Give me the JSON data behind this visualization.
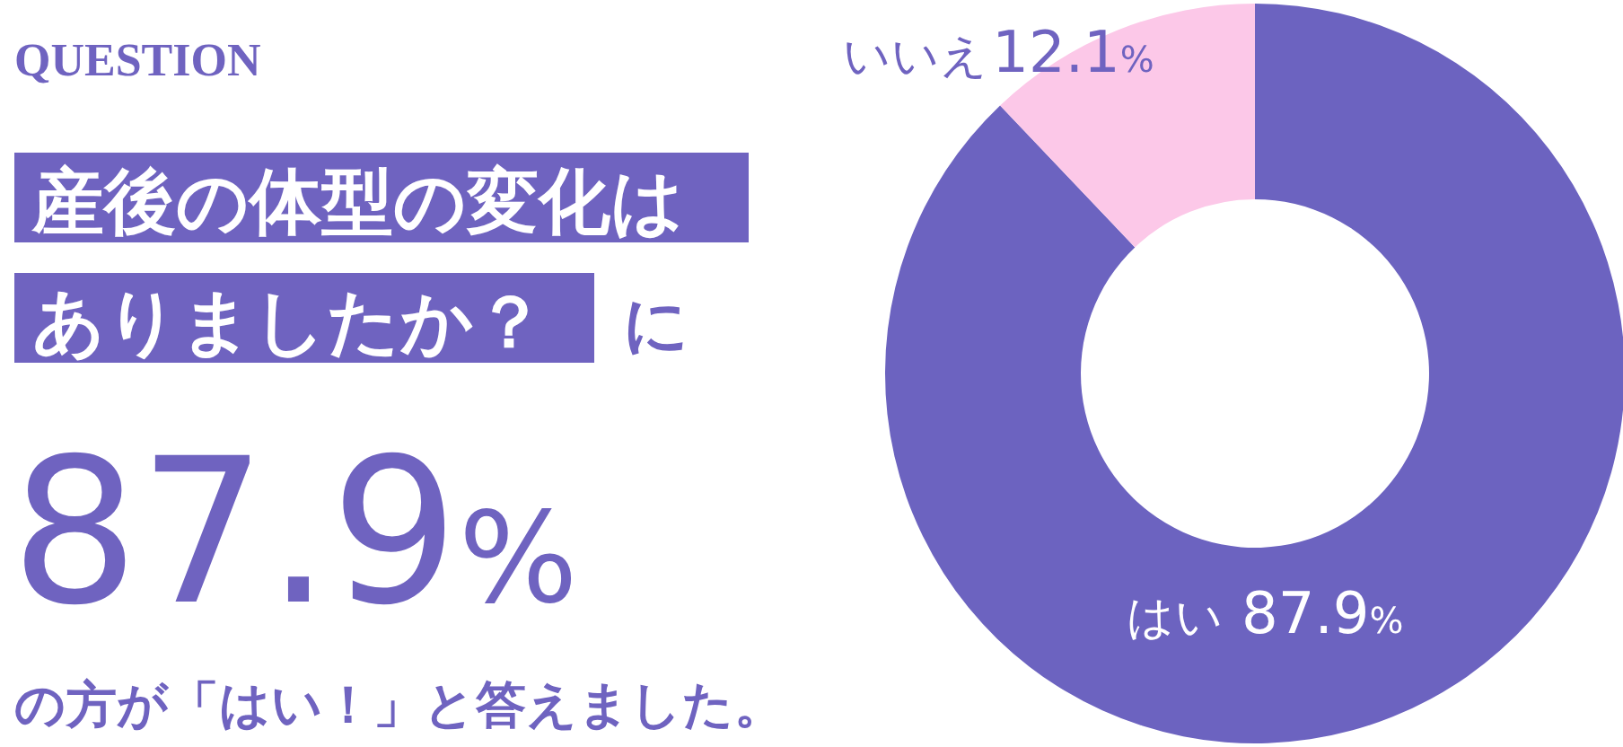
{
  "chart_data": {
    "type": "donut",
    "categories": [
      "はい",
      "いいえ"
    ],
    "values": [
      87.9,
      12.1
    ],
    "value_labels": [
      "87.9%",
      "12.1%"
    ],
    "colors": [
      "#6c63c0",
      "#fcc8e8"
    ],
    "annotations": [
      "QUESTION",
      "産後の体型の変化は",
      "ありましたか？",
      "に",
      "87.9%",
      "の方が「はい！」と答えました。"
    ]
  }
}
